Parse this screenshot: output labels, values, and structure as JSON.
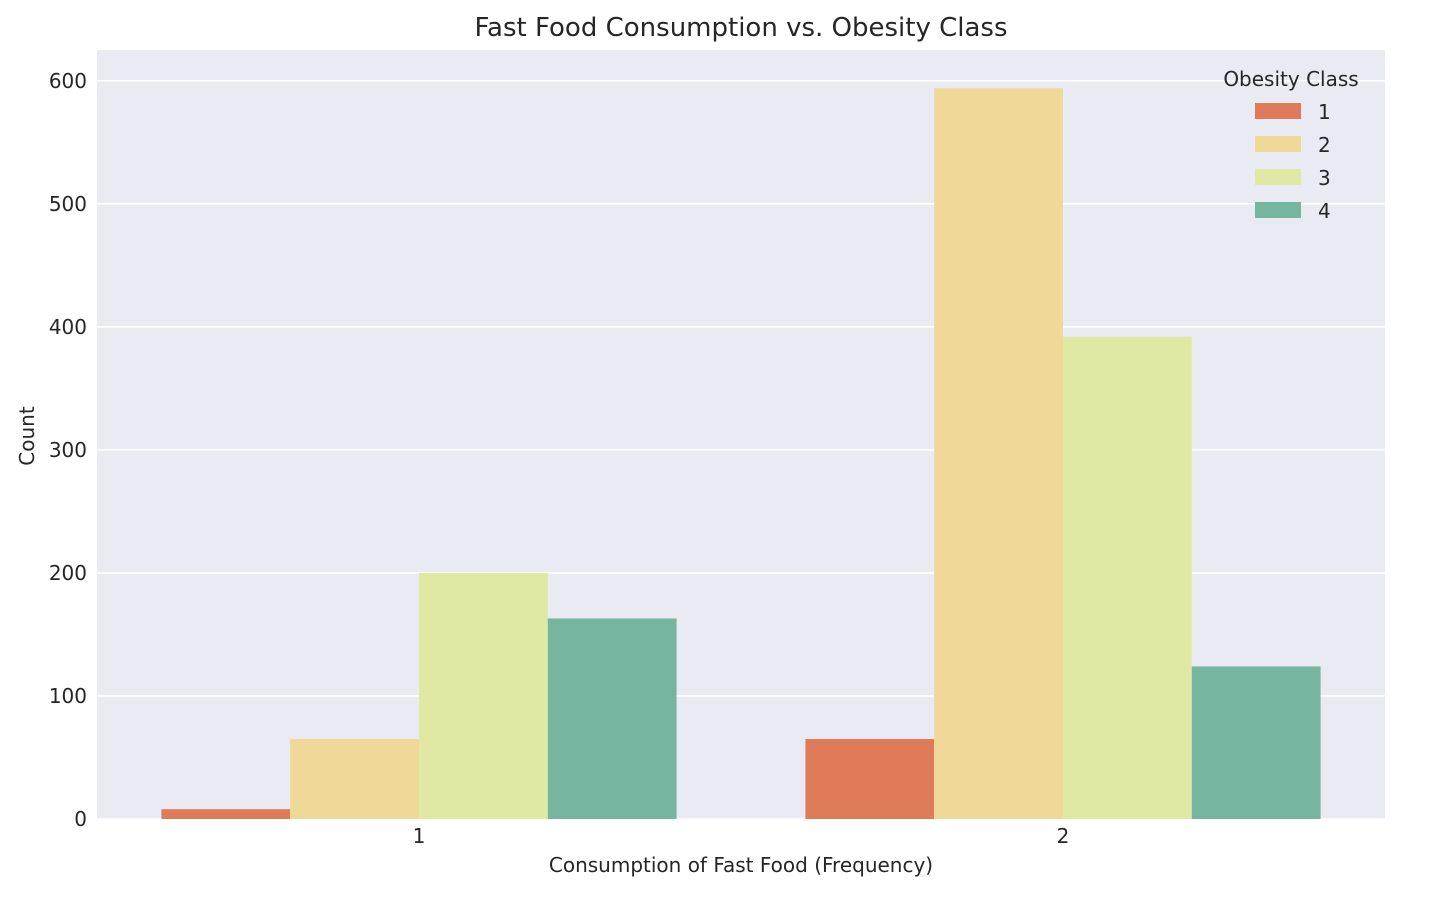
{
  "chart_data": {
    "type": "bar",
    "title": "Fast Food Consumption vs. Obesity Class",
    "xlabel": "Consumption of Fast Food (Frequency)",
    "ylabel": "Count",
    "categories": [
      "1",
      "2"
    ],
    "ylim": [
      0,
      625
    ],
    "yticks": [
      0,
      100,
      200,
      300,
      400,
      500,
      600
    ],
    "grid": true,
    "legend": {
      "title": "Obesity Class",
      "placement": "top-right"
    },
    "series": [
      {
        "name": "1",
        "color": "#e07b5a",
        "values": [
          8,
          65
        ]
      },
      {
        "name": "2",
        "color": "#f0d998",
        "values": [
          65,
          594
        ]
      },
      {
        "name": "3",
        "color": "#dfe9a3",
        "values": [
          200,
          392
        ]
      },
      {
        "name": "4",
        "color": "#76b6a0",
        "values": [
          163,
          124
        ]
      }
    ],
    "background_color": "#eaeaf2"
  }
}
